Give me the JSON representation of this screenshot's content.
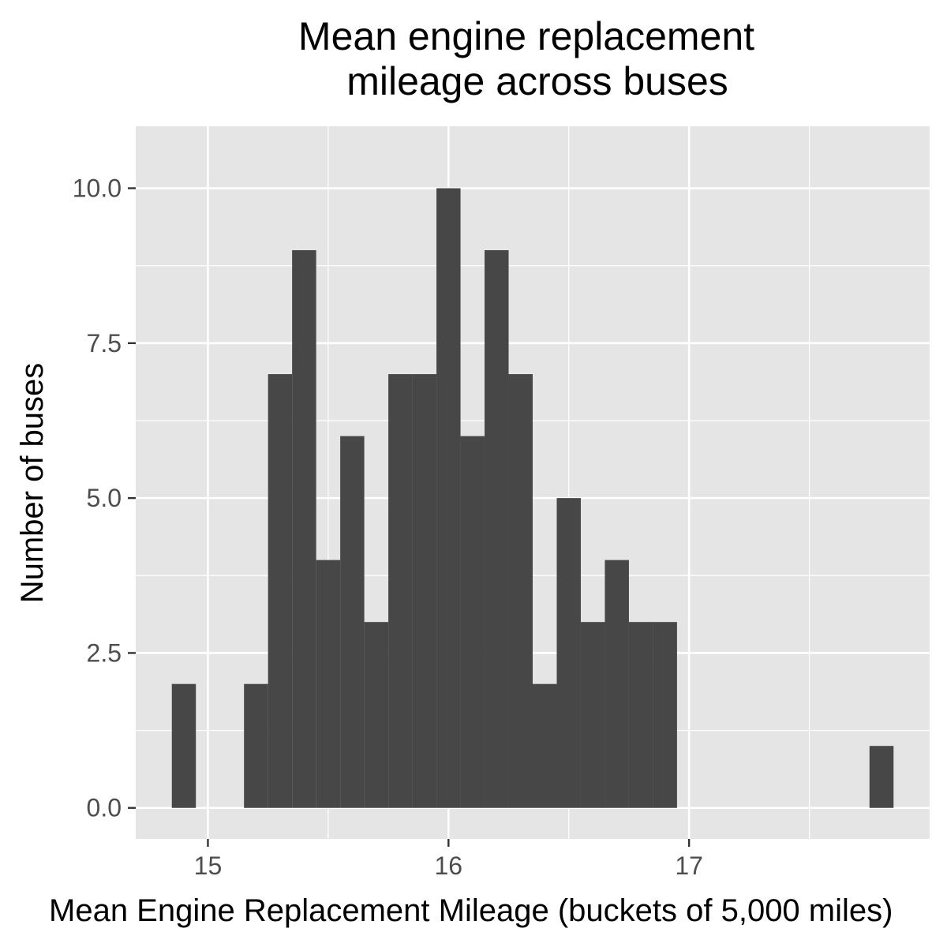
{
  "chart_data": {
    "type": "bar",
    "title_lines": [
      "Mean engine replacement",
      "mileage across buses"
    ],
    "xlabel": "Mean Engine Replacement Mileage (buckets of 5,000 miles)",
    "ylabel": "Number of buses",
    "xlim": [
      14.7,
      18.0
    ],
    "ylim": [
      -0.5,
      11.0
    ],
    "x_ticks": [
      15,
      16,
      17
    ],
    "x_tick_labels": [
      "15",
      "16",
      "17"
    ],
    "y_ticks": [
      0,
      2.5,
      5,
      7.5,
      10
    ],
    "y_tick_labels": [
      "0.0",
      "2.5",
      "5.0",
      "7.5",
      "10.0"
    ],
    "grid": true,
    "colors": {
      "panel_background": "#e5e5e5",
      "grid": "#ffffff",
      "bar_fill": "#474747",
      "tick_text": "#4d4d4d",
      "tick_mark": "#333333"
    },
    "bin_width": 0.1,
    "bins": [
      {
        "start": 14.85,
        "end": 14.95,
        "count": 2
      },
      {
        "start": 14.95,
        "end": 15.05,
        "count": 0
      },
      {
        "start": 15.05,
        "end": 15.15,
        "count": 0
      },
      {
        "start": 15.15,
        "end": 15.25,
        "count": 2
      },
      {
        "start": 15.25,
        "end": 15.35,
        "count": 7
      },
      {
        "start": 15.35,
        "end": 15.45,
        "count": 9
      },
      {
        "start": 15.45,
        "end": 15.55,
        "count": 4
      },
      {
        "start": 15.55,
        "end": 15.65,
        "count": 6
      },
      {
        "start": 15.65,
        "end": 15.75,
        "count": 3
      },
      {
        "start": 15.75,
        "end": 15.85,
        "count": 7
      },
      {
        "start": 15.85,
        "end": 15.95,
        "count": 7
      },
      {
        "start": 15.95,
        "end": 16.05,
        "count": 10
      },
      {
        "start": 16.05,
        "end": 16.15,
        "count": 6
      },
      {
        "start": 16.15,
        "end": 16.25,
        "count": 9
      },
      {
        "start": 16.25,
        "end": 16.35,
        "count": 7
      },
      {
        "start": 16.35,
        "end": 16.45,
        "count": 2
      },
      {
        "start": 16.45,
        "end": 16.55,
        "count": 5
      },
      {
        "start": 16.55,
        "end": 16.65,
        "count": 3
      },
      {
        "start": 16.65,
        "end": 16.75,
        "count": 4
      },
      {
        "start": 16.75,
        "end": 16.85,
        "count": 3
      },
      {
        "start": 16.85,
        "end": 16.95,
        "count": 3
      },
      {
        "start": 17.75,
        "end": 17.85,
        "count": 1
      }
    ]
  }
}
